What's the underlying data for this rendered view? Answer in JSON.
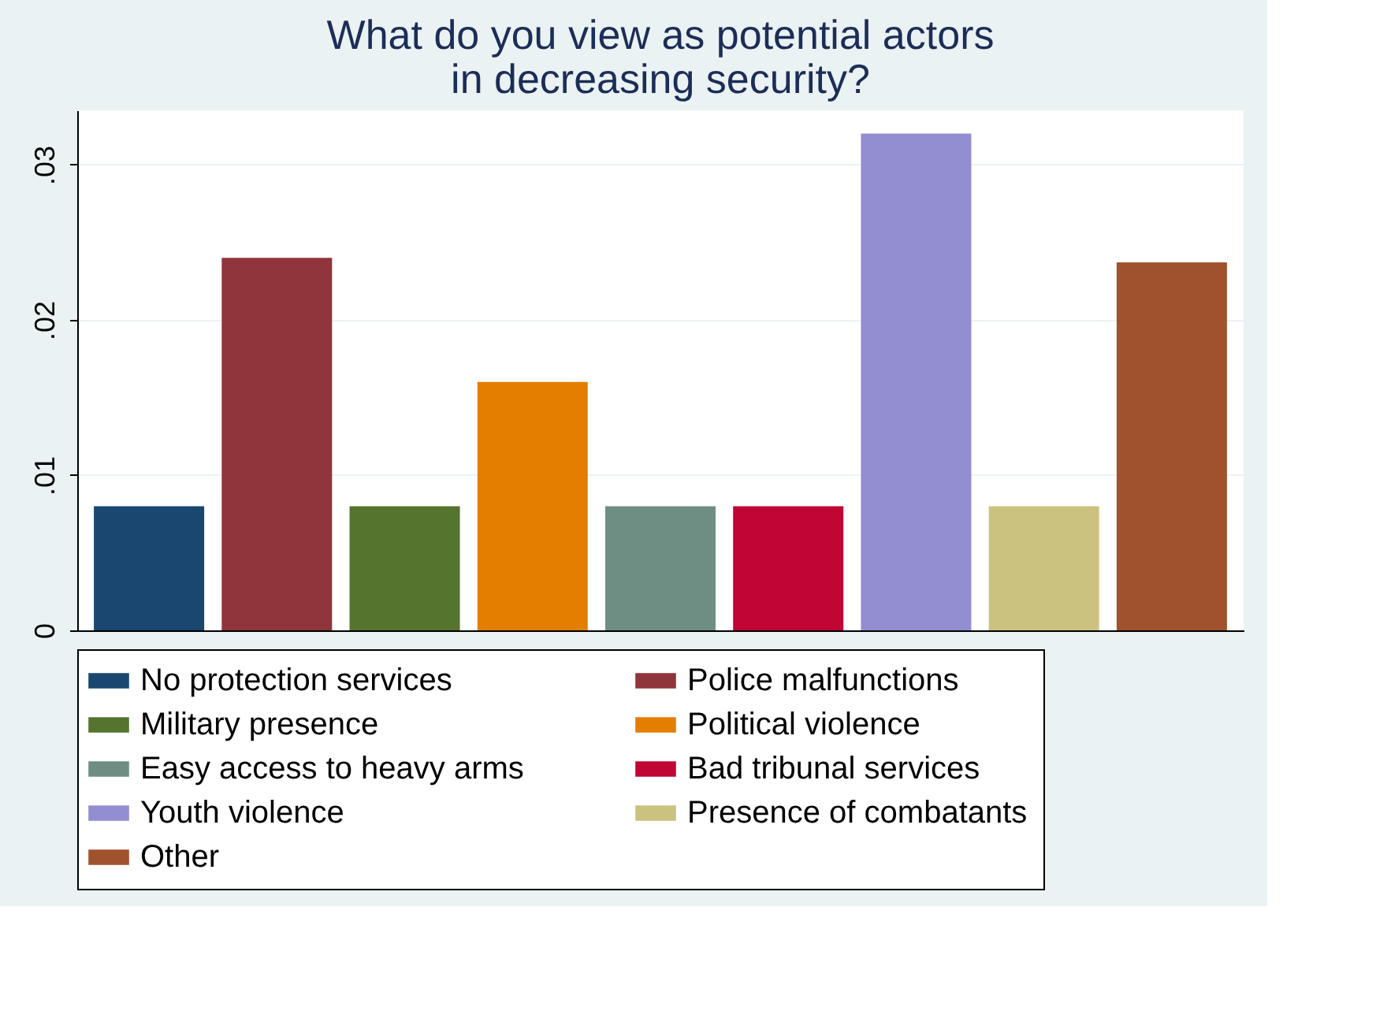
{
  "chart_data": {
    "type": "bar",
    "title": "What do you view as potential actors\nin decreasing security?",
    "categories": [
      null,
      null,
      null,
      null,
      null,
      null,
      null,
      null,
      null
    ],
    "series": [
      {
        "name": "No protection services",
        "color": "#1a476f",
        "values": [
          0.008,
          null,
          null,
          null,
          null,
          null,
          null,
          null,
          null
        ]
      },
      {
        "name": "Police malfunctions",
        "color": "#90353b",
        "values": [
          null,
          0.024,
          null,
          null,
          null,
          null,
          null,
          null,
          null
        ]
      },
      {
        "name": "Military presence",
        "color": "#55752f",
        "values": [
          null,
          null,
          0.008,
          null,
          null,
          null,
          null,
          null,
          null
        ]
      },
      {
        "name": "Political violence",
        "color": "#e37e00",
        "values": [
          null,
          null,
          null,
          0.016,
          null,
          null,
          null,
          null,
          null
        ]
      },
      {
        "name": "Easy access to heavy arms",
        "color": "#6e8e84",
        "values": [
          null,
          null,
          null,
          null,
          0.008,
          null,
          null,
          null,
          null
        ]
      },
      {
        "name": "Bad tribunal services",
        "color": "#c10534",
        "values": [
          null,
          null,
          null,
          null,
          null,
          0.008,
          null,
          null,
          null
        ]
      },
      {
        "name": "Youth violence",
        "color": "#938dd2",
        "values": [
          null,
          null,
          null,
          null,
          null,
          null,
          0.032,
          null,
          null
        ]
      },
      {
        "name": "Presence of combatants",
        "color": "#cac27e",
        "values": [
          null,
          null,
          null,
          null,
          null,
          null,
          null,
          0.008,
          null
        ]
      },
      {
        "name": "Other",
        "color": "#a0522d",
        "values": [
          null,
          null,
          null,
          null,
          null,
          null,
          null,
          null,
          0.0237
        ]
      }
    ],
    "ylim": [
      0,
      0.0335
    ],
    "yticks": [
      0,
      {
        "value": 0.01,
        "label": ".01"
      },
      {
        "value": 0.02,
        "label": ".02"
      },
      {
        "value": 0.03,
        "label": ".03"
      }
    ],
    "grid": "y",
    "legend": "bottom",
    "tick_labels": "y"
  }
}
